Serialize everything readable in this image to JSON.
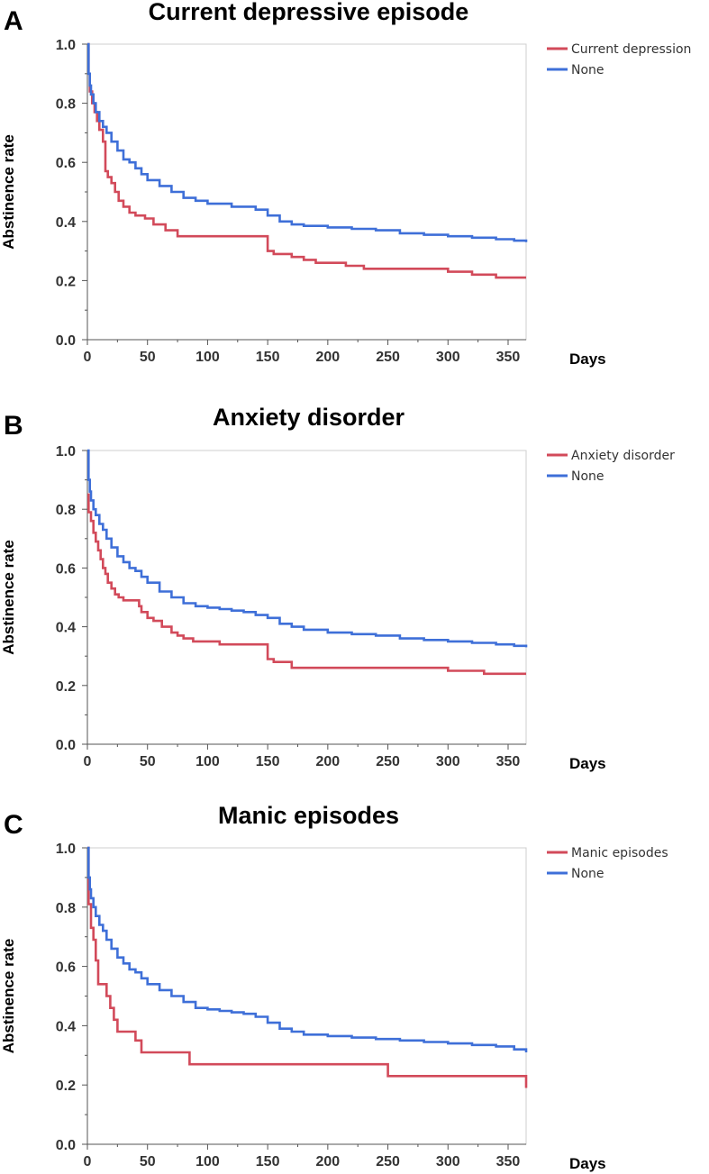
{
  "chart_data": [
    {
      "type": "line",
      "panel": "A",
      "title": "Current depressive episode",
      "xlabel": "Days",
      "ylabel": "Abstinence rate",
      "xlim": [
        0,
        365
      ],
      "ylim": [
        0,
        1
      ],
      "xticks": [
        "0",
        "50",
        "100",
        "150",
        "200",
        "250",
        "300",
        "350"
      ],
      "yticks": [
        "0.0",
        "0.2",
        "0.4",
        "0.6",
        "0.8",
        "1.0"
      ],
      "legend_position": "top-right",
      "series": [
        {
          "name": "Current depression",
          "color": "#d24a5a",
          "x": [
            0,
            1,
            2,
            4,
            6,
            8,
            10,
            13,
            15,
            17,
            20,
            23,
            26,
            30,
            35,
            40,
            48,
            55,
            65,
            75,
            85,
            100,
            120,
            148,
            150,
            155,
            160,
            170,
            180,
            190,
            200,
            215,
            230,
            250,
            270,
            295,
            300,
            320,
            340,
            365
          ],
          "y": [
            1.0,
            0.9,
            0.84,
            0.8,
            0.77,
            0.74,
            0.71,
            0.67,
            0.57,
            0.55,
            0.53,
            0.5,
            0.47,
            0.45,
            0.43,
            0.42,
            0.41,
            0.39,
            0.37,
            0.35,
            0.35,
            0.35,
            0.35,
            0.35,
            0.3,
            0.29,
            0.29,
            0.28,
            0.27,
            0.26,
            0.26,
            0.25,
            0.24,
            0.24,
            0.24,
            0.24,
            0.23,
            0.22,
            0.21,
            0.21
          ]
        },
        {
          "name": "None",
          "color": "#3e6fd8",
          "x": [
            0,
            1,
            2,
            3,
            5,
            7,
            10,
            13,
            16,
            20,
            25,
            30,
            35,
            40,
            45,
            50,
            60,
            70,
            80,
            90,
            100,
            110,
            120,
            130,
            140,
            150,
            160,
            170,
            180,
            200,
            220,
            240,
            260,
            280,
            300,
            320,
            340,
            355,
            365
          ],
          "y": [
            1.0,
            0.9,
            0.86,
            0.83,
            0.8,
            0.77,
            0.74,
            0.72,
            0.7,
            0.67,
            0.64,
            0.61,
            0.6,
            0.58,
            0.56,
            0.54,
            0.52,
            0.5,
            0.48,
            0.47,
            0.46,
            0.46,
            0.45,
            0.45,
            0.44,
            0.42,
            0.4,
            0.39,
            0.385,
            0.38,
            0.375,
            0.37,
            0.36,
            0.355,
            0.35,
            0.345,
            0.34,
            0.335,
            0.33
          ]
        }
      ]
    },
    {
      "type": "line",
      "panel": "B",
      "title": "Anxiety disorder",
      "xlabel": "Days",
      "ylabel": "Abstinence rate",
      "xlim": [
        0,
        365
      ],
      "ylim": [
        0,
        1
      ],
      "xticks": [
        "0",
        "50",
        "100",
        "150",
        "200",
        "250",
        "300",
        "350"
      ],
      "yticks": [
        "0.0",
        "0.2",
        "0.4",
        "0.6",
        "0.8",
        "1.0"
      ],
      "legend_position": "top-right",
      "series": [
        {
          "name": "Anxiety disorder",
          "color": "#d24a5a",
          "x": [
            0,
            1,
            3,
            5,
            7,
            9,
            11,
            13,
            15,
            17,
            20,
            23,
            26,
            30,
            35,
            43,
            45,
            50,
            55,
            62,
            70,
            75,
            80,
            88,
            100,
            110,
            120,
            148,
            150,
            155,
            170,
            190,
            230,
            270,
            295,
            300,
            330,
            365
          ],
          "y": [
            0.85,
            0.79,
            0.76,
            0.72,
            0.69,
            0.66,
            0.63,
            0.6,
            0.58,
            0.55,
            0.53,
            0.51,
            0.5,
            0.49,
            0.49,
            0.47,
            0.45,
            0.43,
            0.42,
            0.4,
            0.38,
            0.37,
            0.36,
            0.35,
            0.35,
            0.34,
            0.34,
            0.34,
            0.29,
            0.28,
            0.26,
            0.26,
            0.26,
            0.26,
            0.26,
            0.25,
            0.24,
            0.24
          ]
        },
        {
          "name": "None",
          "color": "#3e6fd8",
          "x": [
            0,
            1,
            2,
            3,
            5,
            7,
            10,
            13,
            16,
            20,
            25,
            30,
            35,
            40,
            45,
            50,
            60,
            70,
            80,
            90,
            100,
            110,
            120,
            130,
            140,
            150,
            160,
            170,
            180,
            200,
            220,
            240,
            260,
            280,
            300,
            320,
            340,
            355,
            365
          ],
          "y": [
            1.0,
            0.9,
            0.86,
            0.83,
            0.8,
            0.78,
            0.75,
            0.73,
            0.7,
            0.67,
            0.64,
            0.62,
            0.6,
            0.59,
            0.57,
            0.55,
            0.52,
            0.5,
            0.48,
            0.47,
            0.465,
            0.46,
            0.455,
            0.45,
            0.44,
            0.43,
            0.41,
            0.4,
            0.39,
            0.38,
            0.375,
            0.37,
            0.36,
            0.355,
            0.35,
            0.345,
            0.34,
            0.335,
            0.33
          ]
        }
      ]
    },
    {
      "type": "line",
      "panel": "C",
      "title": "Manic episodes",
      "xlabel": "Days",
      "ylabel": "Abstinence rate",
      "xlim": [
        0,
        365
      ],
      "ylim": [
        0,
        1
      ],
      "xticks": [
        "0",
        "50",
        "100",
        "150",
        "200",
        "250",
        "300",
        "350"
      ],
      "yticks": [
        "0.0",
        "0.2",
        "0.4",
        "0.6",
        "0.8",
        "1.0"
      ],
      "legend_position": "top-right",
      "series": [
        {
          "name": "Manic episodes",
          "color": "#d24a5a",
          "x": [
            0,
            1,
            3,
            5,
            7,
            9,
            13,
            16,
            19,
            22,
            25,
            28,
            38,
            40,
            45,
            55,
            85,
            95,
            150,
            200,
            247,
            250,
            300,
            364,
            365
          ],
          "y": [
            1.0,
            0.81,
            0.73,
            0.69,
            0.62,
            0.54,
            0.54,
            0.5,
            0.46,
            0.42,
            0.38,
            0.38,
            0.38,
            0.35,
            0.31,
            0.31,
            0.27,
            0.27,
            0.27,
            0.27,
            0.27,
            0.23,
            0.23,
            0.23,
            0.19
          ]
        },
        {
          "name": "None",
          "color": "#3e6fd8",
          "x": [
            0,
            1,
            2,
            3,
            5,
            7,
            10,
            13,
            16,
            20,
            25,
            30,
            35,
            40,
            45,
            50,
            60,
            70,
            80,
            90,
            100,
            110,
            120,
            130,
            140,
            145,
            150,
            160,
            170,
            180,
            200,
            220,
            240,
            260,
            280,
            300,
            320,
            340,
            355,
            365
          ],
          "y": [
            1.0,
            0.9,
            0.86,
            0.83,
            0.8,
            0.77,
            0.74,
            0.72,
            0.69,
            0.66,
            0.63,
            0.61,
            0.59,
            0.58,
            0.56,
            0.54,
            0.52,
            0.5,
            0.48,
            0.46,
            0.455,
            0.45,
            0.445,
            0.44,
            0.43,
            0.43,
            0.41,
            0.39,
            0.38,
            0.37,
            0.365,
            0.36,
            0.355,
            0.35,
            0.345,
            0.34,
            0.335,
            0.33,
            0.32,
            0.31
          ]
        }
      ]
    }
  ]
}
